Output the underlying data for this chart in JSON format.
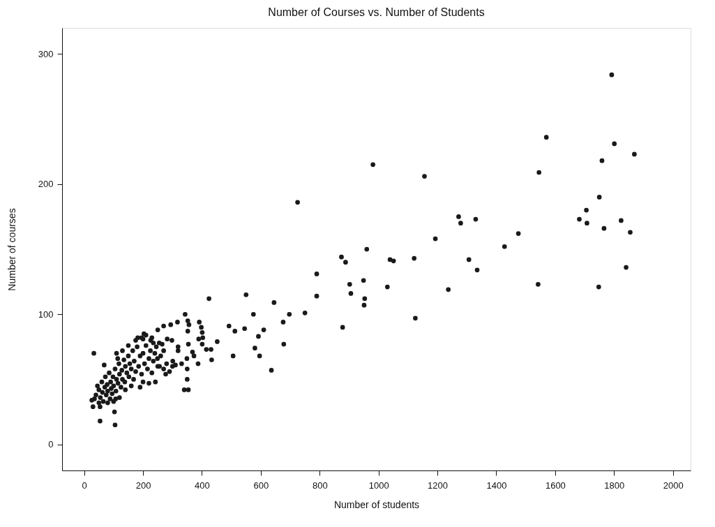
{
  "chart_data": {
    "type": "scatter",
    "title": "Number of Courses vs. Number of Students",
    "xlabel": "Number of students",
    "ylabel": "Number of courses",
    "xlim": [
      -75,
      2060
    ],
    "ylim": [
      -20,
      320
    ],
    "xticks": [
      0,
      200,
      400,
      600,
      800,
      1000,
      1200,
      1400,
      1600,
      1800,
      2000
    ],
    "yticks": [
      0,
      100,
      200,
      300
    ],
    "grid": false,
    "marker": "circle",
    "x": [
      1792,
      1570,
      1801,
      1869,
      1759,
      1545,
      1750,
      1706,
      1682,
      1708,
      1824,
      1766,
      1855,
      1841,
      1542,
      1748,
      981,
      1156,
      1272,
      1279,
      1330,
      1475,
      1193,
      1428,
      960,
      874,
      888,
      1039,
      1051,
      1121,
      1307,
      1335,
      790,
      902,
      949,
      1030,
      1237,
      790,
      906,
      953,
      951,
      750,
      1125,
      878,
      725,
      424,
      550,
      645,
      575,
      697,
      676,
      492,
      512,
      545,
      610,
      592,
      678,
      580,
      596,
      506,
      636,
      452,
      415,
      431,
      433,
      387,
      401,
      343,
      352,
      356,
      391,
      398,
      401,
      403,
      389,
      352,
      354,
      349,
      350,
      350,
      340,
      354,
      368,
      373,
      317,
      294,
      270,
      282,
      298,
      319,
      319,
      301,
      310,
      331,
      270,
      249,
      256,
      277,
      242,
      203,
      182,
      200,
      226,
      235,
      245,
      33,
      68,
      103,
      54,
      105,
      114,
      107,
      26,
      30,
      54,
      40,
      45,
      50,
      55,
      60,
      62,
      65,
      70,
      72,
      75,
      78,
      80,
      85,
      88,
      90,
      92,
      95,
      98,
      100,
      105,
      108,
      110,
      115,
      118,
      120,
      125,
      128,
      130,
      135,
      138,
      140,
      145,
      150,
      152,
      155,
      160,
      165,
      168,
      170,
      175,
      180,
      185,
      190,
      195,
      200,
      205,
      210,
      215,
      220,
      225,
      230,
      235,
      240,
      250,
      260,
      270,
      280,
      290,
      300,
      160,
      190,
      200,
      220,
      140,
      120,
      100,
      80,
      50,
      35,
      110,
      130,
      150,
      175,
      195,
      210,
      230,
      250,
      255,
      265
    ],
    "series": [
      {
        "color": "#1a1a1a",
        "values": [
          284,
          236,
          231,
          223,
          218,
          209,
          190,
          180,
          173,
          170,
          172,
          166,
          163,
          136,
          123,
          121,
          215,
          206,
          175,
          170,
          173,
          162,
          158,
          152,
          150,
          144,
          140,
          142,
          141,
          143,
          142,
          134,
          131,
          123,
          126,
          121,
          119,
          114,
          116,
          112,
          107,
          101,
          97,
          90,
          186,
          112,
          115,
          109,
          100,
          100,
          94,
          91,
          87,
          89,
          88,
          83,
          77,
          74,
          68,
          68,
          57,
          79,
          73,
          73,
          65,
          62,
          77,
          100,
          95,
          92,
          94,
          90,
          86,
          82,
          81,
          87,
          77,
          66,
          58,
          50,
          42,
          42,
          71,
          68,
          94,
          92,
          91,
          81,
          80,
          75,
          72,
          64,
          61,
          62,
          72,
          66,
          60,
          54,
          48,
          85,
          82,
          81,
          80,
          78,
          75,
          70,
          61,
          25,
          18,
          15,
          66,
          35,
          34,
          29,
          29,
          38,
          45,
          42,
          36,
          48,
          40,
          33,
          44,
          52,
          38,
          46,
          41,
          55,
          35,
          48,
          43,
          39,
          52,
          45,
          58,
          41,
          50,
          47,
          62,
          54,
          44,
          57,
          50,
          65,
          48,
          60,
          55,
          68,
          52,
          62,
          58,
          72,
          50,
          64,
          56,
          75,
          60,
          68,
          54,
          70,
          62,
          76,
          58,
          66,
          72,
          55,
          64,
          70,
          60,
          68,
          58,
          62,
          56,
          60,
          45,
          44,
          48,
          47,
          42,
          36,
          33,
          32,
          32,
          35,
          70,
          72,
          76,
          80,
          82,
          84,
          82,
          88,
          78,
          77
        ]
      }
    ]
  }
}
